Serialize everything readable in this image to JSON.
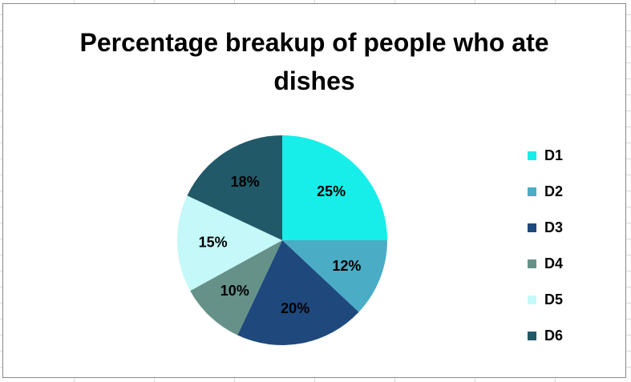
{
  "chart_data": {
    "type": "pie",
    "title": "Percentage breakup of people who ate dishes",
    "legend_position": "right",
    "categories": [
      "D1",
      "D2",
      "D3",
      "D4",
      "D5",
      "D6"
    ],
    "values": [
      25,
      12,
      20,
      10,
      15,
      18
    ],
    "data_labels": [
      "25%",
      "12%",
      "20%",
      "10%",
      "15%",
      "18%"
    ],
    "colors": [
      "#17EEE9",
      "#4BACC6",
      "#1F497D",
      "#659189",
      "#C5F8F8",
      "#215968"
    ]
  }
}
